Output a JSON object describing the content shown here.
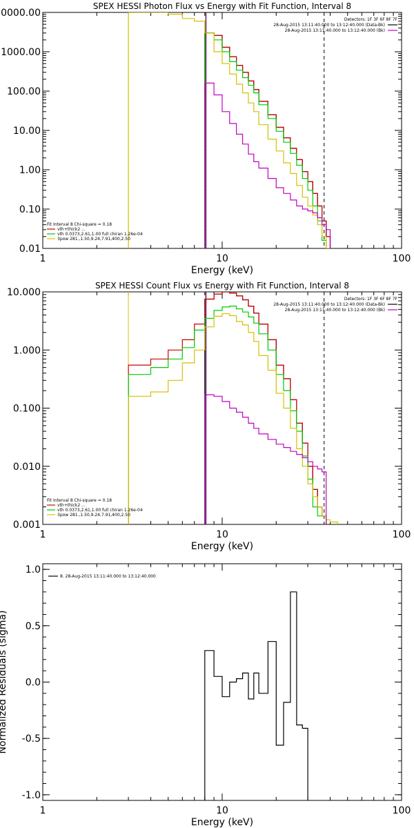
{
  "chart_data": [
    {
      "type": "line",
      "title": "SPEX HESSI Photon Flux vs Energy with Fit Function, Interval 8",
      "xlabel": "Energy (keV)",
      "ylabel": "",
      "x_scale": "log",
      "y_scale": "log",
      "xlim": [
        1,
        100
      ],
      "ylim": [
        0.01,
        10000
      ],
      "x_ticks": [
        {
          "value": 1,
          "label": "1"
        },
        {
          "value": 10,
          "label": "10"
        },
        {
          "value": 100,
          "label": "100"
        }
      ],
      "y_ticks": [
        {
          "value": 10000,
          "label": "10000.00"
        },
        {
          "value": 1000,
          "label": "1000.00"
        },
        {
          "value": 100,
          "label": "100.00"
        },
        {
          "value": 10,
          "label": "10.00"
        },
        {
          "value": 1,
          "label": "1.00"
        },
        {
          "value": 0.1,
          "label": "0.10"
        },
        {
          "value": 0.01,
          "label": "0.01"
        }
      ],
      "vlines": [
        {
          "x": 3.0,
          "color": "#d4c000",
          "dash": ""
        },
        {
          "x": 8.1,
          "color": "#000000",
          "dash": ""
        },
        {
          "x": 8.15,
          "color": "#c000c0",
          "dash": "1,1"
        },
        {
          "x": 37,
          "color": "#000000",
          "dash": "5,4"
        }
      ],
      "edges": [
        3.0,
        4.0,
        5.0,
        6.0,
        7.0,
        8.0,
        9.0,
        10.0,
        11.0,
        12.0,
        13.0,
        14.0,
        15.0,
        16.0,
        18.0,
        20.0,
        22.0,
        24.0,
        26.0,
        28.0,
        30.0,
        32.0,
        34.0,
        36.0,
        38.0,
        40.0
      ],
      "series": [
        {
          "color": "#000000",
          "values": [
            null,
            null,
            null,
            null,
            null,
            3000,
            2600,
            1300,
            750,
            450,
            300,
            180,
            110,
            55,
            25,
            12,
            6.5,
            3.5,
            1.8,
            0.9,
            0.5,
            0.25,
            0.12,
            0.05,
            0.02
          ]
        },
        {
          "color": "#cc0000",
          "values": [
            null,
            null,
            null,
            null,
            null,
            3000,
            2600,
            1300,
            750,
            450,
            300,
            180,
            110,
            55,
            25,
            12,
            6.5,
            3.5,
            1.8,
            0.9,
            0.5,
            0.25,
            0.12,
            0.05,
            0.02
          ]
        },
        {
          "color": "#00cc00",
          "values": [
            null,
            null,
            null,
            null,
            null,
            3000,
            2000,
            1000,
            560,
            340,
            220,
            140,
            90,
            45,
            20,
            9.5,
            5,
            2.6,
            1.3,
            0.6,
            0.3,
            0.12,
            0.05,
            0.016,
            0.008
          ]
        },
        {
          "color": "#d4c000",
          "values": [
            10000,
            10000,
            9000,
            7000,
            6000,
            3000,
            1000,
            500,
            270,
            150,
            90,
            50,
            30,
            14,
            6,
            3,
            1.5,
            0.8,
            0.4,
            0.2,
            0.12,
            0.07,
            0.04,
            0.02,
            0.01
          ]
        },
        {
          "color": "#c000c0",
          "values": [
            null,
            null,
            null,
            null,
            null,
            160,
            80,
            30,
            15,
            8,
            4.5,
            2.5,
            1.6,
            1.1,
            0.6,
            0.35,
            0.25,
            0.17,
            0.12,
            0.1,
            0.09,
            0.08,
            0.06,
            0.04,
            0.03
          ]
        }
      ],
      "legend_tr": {
        "detectors": "Detectors: 1F 3F 6F 8F 7F",
        "entries": [
          {
            "label": "28-Aug-2015 13:11:40.000 to 13:12:40.000 (Data-Bk)",
            "color": "#000000"
          },
          {
            "label": "28-Aug-2015 13:11:40.000 to 13:12:40.000 (Bk)",
            "color": "#c000c0"
          }
        ]
      },
      "legend_bl": {
        "header": "Fit Interval 8   Chi-square = 0.18",
        "entries": [
          {
            "label": "vth+thick2 ...",
            "color": "#cc0000"
          },
          {
            "label": "vth 0.0373,2.61,1.00  full chiran 1.26e-04",
            "color": "#00cc00"
          },
          {
            "label": "3pow 281.,1.50,9.24,7.91,400,2.50",
            "color": "#d4c000"
          }
        ]
      }
    },
    {
      "type": "line",
      "title": "SPEX HESSI Count Flux vs Energy with Fit Function, Interval 8",
      "xlabel": "Energy (keV)",
      "ylabel": "",
      "x_scale": "log",
      "y_scale": "log",
      "xlim": [
        1,
        100
      ],
      "ylim": [
        0.001,
        10
      ],
      "x_ticks": [
        {
          "value": 1,
          "label": "1"
        },
        {
          "value": 10,
          "label": "10"
        },
        {
          "value": 100,
          "label": "100"
        }
      ],
      "y_ticks": [
        {
          "value": 10,
          "label": "10.000"
        },
        {
          "value": 1,
          "label": "1.000"
        },
        {
          "value": 0.1,
          "label": "0.100"
        },
        {
          "value": 0.01,
          "label": "0.010"
        },
        {
          "value": 0.001,
          "label": "0.001"
        }
      ],
      "vlines": [
        {
          "x": 3.0,
          "color": "#d4c000",
          "dash": ""
        },
        {
          "x": 8.1,
          "color": "#000000",
          "dash": ""
        },
        {
          "x": 8.15,
          "color": "#c000c0",
          "dash": "1,1"
        },
        {
          "x": 37,
          "color": "#000000",
          "dash": "5,4"
        }
      ],
      "edges": [
        3.0,
        4.0,
        5.0,
        6.0,
        7.0,
        8.0,
        9.0,
        10.0,
        11.0,
        12.0,
        13.0,
        14.0,
        15.0,
        16.0,
        18.0,
        20.0,
        22.0,
        24.0,
        26.0,
        28.0,
        30.0,
        32.0,
        34.0,
        36.0,
        38.0,
        40.0,
        44.0
      ],
      "series": [
        {
          "color": "#000000",
          "values": [
            null,
            null,
            null,
            null,
            null,
            7.5,
            9.2,
            10.0,
            9.5,
            8.5,
            7.3,
            5.7,
            4.3,
            2.8,
            1.5,
            0.55,
            0.32,
            0.14,
            0.055,
            0.025,
            0.01,
            0.004,
            0.002,
            0.0014,
            null,
            null
          ]
        },
        {
          "color": "#cc0000",
          "values": [
            0.55,
            0.7,
            1.0,
            1.5,
            2.8,
            7.5,
            9.2,
            10.0,
            9.5,
            8.5,
            7.3,
            5.7,
            4.3,
            2.8,
            1.5,
            0.55,
            0.32,
            0.14,
            0.055,
            0.025,
            0.01,
            0.004,
            0.002,
            0.0014,
            null,
            null
          ]
        },
        {
          "color": "#00cc00",
          "values": [
            0.38,
            0.5,
            0.7,
            1.1,
            2.2,
            3.5,
            4.8,
            5.5,
            5.7,
            5.1,
            4.5,
            3.7,
            2.9,
            1.9,
            1.0,
            0.38,
            0.2,
            0.09,
            0.04,
            0.015,
            0.006,
            0.002,
            0.0014,
            0.0014,
            null,
            null
          ]
        },
        {
          "color": "#d4c000",
          "values": [
            0.16,
            0.19,
            0.3,
            0.6,
            1.0,
            2.5,
            3.8,
            4.2,
            3.9,
            3.1,
            2.7,
            2.0,
            1.4,
            0.8,
            0.45,
            0.18,
            0.1,
            0.045,
            0.02,
            0.01,
            0.005,
            0.003,
            0.002,
            0.0014,
            0.0012,
            0.0011
          ]
        },
        {
          "color": "#c000c0",
          "values": [
            null,
            null,
            null,
            null,
            null,
            0.17,
            0.16,
            0.13,
            0.1,
            0.085,
            0.07,
            0.055,
            0.045,
            0.036,
            0.029,
            0.024,
            0.021,
            0.018,
            0.016,
            0.014,
            0.012,
            0.01,
            0.009,
            0.008,
            null,
            null
          ]
        }
      ],
      "legend_tr": {
        "detectors": "Detectors: 1F 3F 6F 8F 7F",
        "entries": [
          {
            "label": "28-Aug-2015 13:11:40.000 to 13:12:40.000 (Data-Bk)",
            "color": "#000000"
          },
          {
            "label": "28-Aug-2015 13:11:40.000 to 13:12:40.000 (Bk)",
            "color": "#c000c0"
          }
        ]
      },
      "legend_bl": {
        "header": "Fit Interval 8   Chi-square = 0.18",
        "entries": [
          {
            "label": "vth+thick2 ...",
            "color": "#cc0000"
          },
          {
            "label": "vth 0.0373,2.61,1.00  full chiran 1.26e-04",
            "color": "#00cc00"
          },
          {
            "label": "3pow 281.,1.50,9.24,7.91,400,2.50",
            "color": "#d4c000"
          }
        ]
      }
    },
    {
      "type": "line",
      "title": "",
      "xlabel": "Energy (keV)",
      "ylabel": "Normalized Residuals (sigma)",
      "x_scale": "log",
      "y_scale": "linear",
      "xlim": [
        1,
        100
      ],
      "ylim": [
        -1.05,
        1.05
      ],
      "x_ticks": [
        {
          "value": 1,
          "label": "1"
        },
        {
          "value": 10,
          "label": "10"
        },
        {
          "value": 100,
          "label": "100"
        }
      ],
      "y_ticks": [
        {
          "value": 1.0,
          "label": "1.0"
        },
        {
          "value": 0.5,
          "label": "0.5"
        },
        {
          "value": 0.0,
          "label": "0.0"
        },
        {
          "value": -0.5,
          "label": "-0.5"
        },
        {
          "value": -1.0,
          "label": "-1.0"
        }
      ],
      "baseline": -1.05,
      "edges": [
        8.0,
        9.0,
        10.0,
        11.0,
        12.0,
        13.0,
        14.0,
        15.0,
        16.0,
        18.0,
        20.0,
        22.0,
        24.0,
        26.0,
        28.0,
        30.0,
        32.0,
        34.0,
        36.0
      ],
      "series": [
        {
          "color": "#000000",
          "values": [
            0.28,
            0.05,
            -0.13,
            0.0,
            0.03,
            0.08,
            -0.15,
            0.08,
            -0.1,
            0.36,
            -0.56,
            -0.18,
            0.8,
            -0.38,
            -0.41,
            null,
            null,
            null
          ]
        }
      ],
      "legend_tl": {
        "entries": [
          {
            "label": "8. 28-Aug-2015 13:11:40.000 to 13:12:40.000",
            "color": "#000000"
          }
        ]
      }
    }
  ]
}
